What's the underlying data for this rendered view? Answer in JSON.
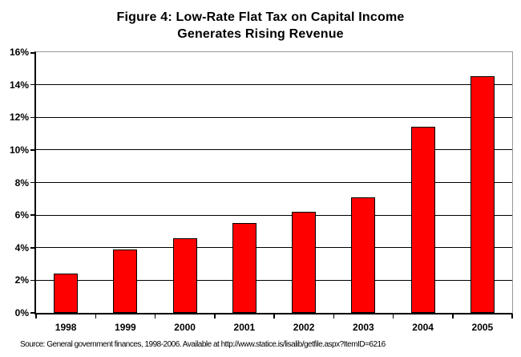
{
  "chart_data": {
    "type": "bar",
    "title": "Figure 4: Low-Rate Flat Tax on Capital Income Generates Rising Revenue",
    "title_lines": [
      "Figure 4: Low-Rate Flat Tax on Capital Income",
      "Generates Rising Revenue"
    ],
    "categories": [
      "1998",
      "1999",
      "2000",
      "2001",
      "2002",
      "2003",
      "2004",
      "2005"
    ],
    "values": [
      2.4,
      3.9,
      4.6,
      5.5,
      6.2,
      7.1,
      11.4,
      14.5
    ],
    "unit": "%",
    "xlabel": "",
    "ylabel": "",
    "ylim": [
      0,
      16
    ],
    "ytick_step": 2,
    "y_tick_labels": [
      "0%",
      "2%",
      "4%",
      "6%",
      "8%",
      "10%",
      "12%",
      "14%",
      "16%"
    ],
    "grid": "horizontal",
    "legend": "none",
    "colors": {
      "bar_fill": "#FF0000",
      "bar_border": "#000000",
      "gridline": "#000000",
      "axis": "#000000",
      "plot_frame": "#999999",
      "text": "#000000"
    },
    "source": "Source: General government finances, 1998-2006. Available at http://www.statice.is/lisalib/getfile.aspx?ItemID=6216"
  }
}
